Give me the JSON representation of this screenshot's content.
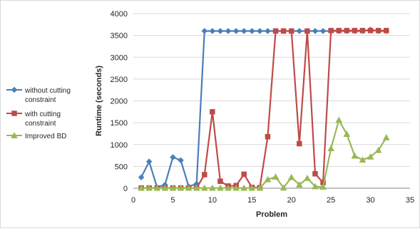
{
  "chart_data": {
    "type": "line",
    "title": "",
    "xlabel": "Problem",
    "ylabel": "Runtime (seconds)",
    "xlim": [
      0,
      35
    ],
    "ylim": [
      0,
      4000
    ],
    "xticks": [
      0,
      5,
      10,
      15,
      20,
      25,
      30,
      35
    ],
    "yticks": [
      0,
      500,
      1000,
      1500,
      2000,
      2500,
      3000,
      3500,
      4000
    ],
    "grid": "horizontal",
    "legend_position": "left",
    "x": [
      1,
      2,
      3,
      4,
      5,
      6,
      7,
      8,
      9,
      10,
      11,
      12,
      13,
      14,
      15,
      16,
      17,
      18,
      19,
      20,
      21,
      22,
      23,
      24,
      25,
      26,
      27,
      28,
      29,
      30,
      31,
      32
    ],
    "series": [
      {
        "name": "without cutting constraint",
        "legend_lines": [
          "without cutting",
          "constraint"
        ],
        "color": "#4a7ebb",
        "marker": "diamond",
        "values": [
          250,
          610,
          20,
          80,
          710,
          640,
          40,
          100,
          3600,
          3600,
          3600,
          3600,
          3600,
          3600,
          3600,
          3600,
          3600,
          3600,
          3600,
          3600,
          3600,
          3600,
          3600,
          3600,
          3600,
          3600,
          3600,
          3600,
          3600,
          3630,
          3600,
          3600
        ]
      },
      {
        "name": "with cutting constraint",
        "legend_lines": [
          "with cutting",
          "constraint"
        ],
        "color": "#be4b48",
        "marker": "square",
        "values": [
          5,
          5,
          5,
          5,
          5,
          5,
          5,
          5,
          310,
          1750,
          160,
          50,
          60,
          320,
          20,
          15,
          1180,
          3600,
          3600,
          3600,
          1020,
          3600,
          330,
          130,
          3610,
          3610,
          3610,
          3610,
          3610,
          3610,
          3610,
          3610
        ]
      },
      {
        "name": "Improved BD",
        "legend_lines": [
          "Improved BD"
        ],
        "color": "#98b954",
        "marker": "triangle",
        "values": [
          5,
          5,
          5,
          5,
          5,
          5,
          5,
          5,
          5,
          5,
          5,
          5,
          5,
          5,
          5,
          5,
          200,
          260,
          10,
          250,
          80,
          230,
          40,
          30,
          910,
          1560,
          1240,
          740,
          650,
          720,
          870,
          1160
        ]
      }
    ]
  }
}
